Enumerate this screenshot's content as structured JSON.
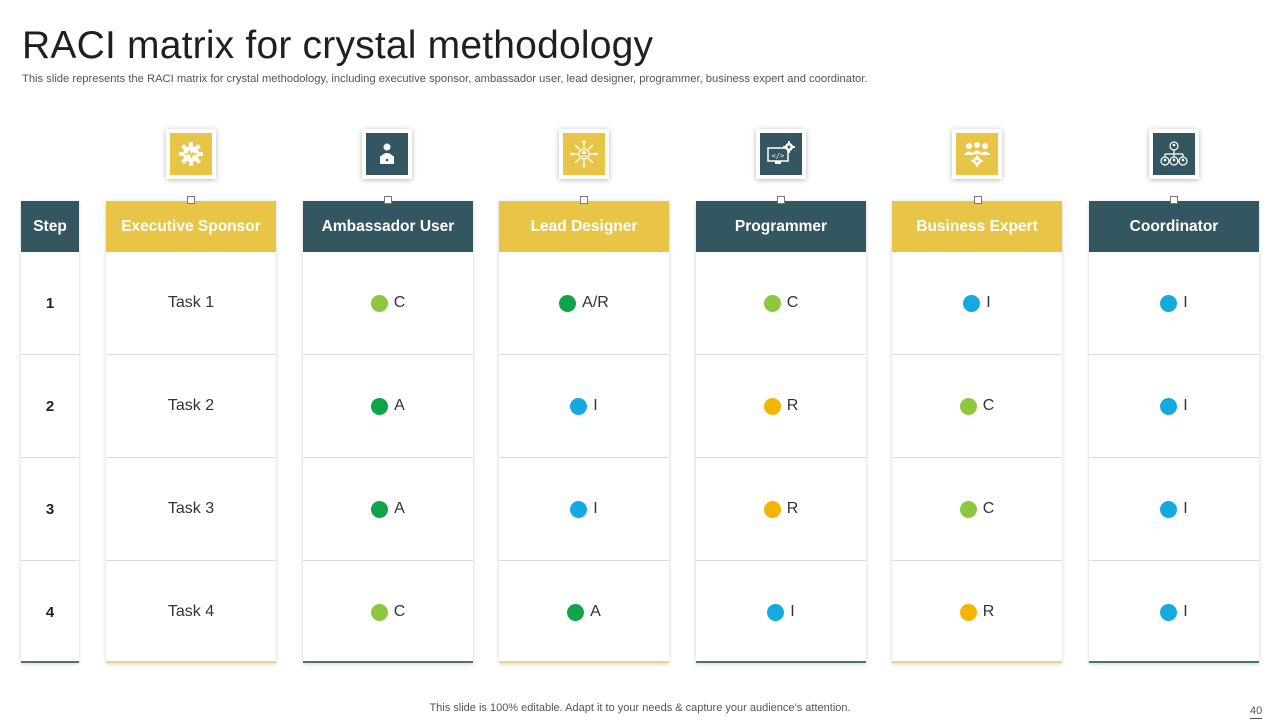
{
  "slide": {
    "title": "RACI matrix for crystal methodology",
    "subtitle": "This slide represents the RACI matrix for crystal methodology, including executive sponsor, ambassador user, lead designer, programmer, business expert and coordinator.",
    "footer": "This slide is 100% editable. Adapt it to your needs & capture your audience’s attention.",
    "page_number": "40"
  },
  "colors": {
    "yellow": "#e8c547",
    "teal": "#345660",
    "C": "#8dc63f",
    "A": "#0fa34a",
    "R": "#f4b400",
    "I": "#15a9e1"
  },
  "matrix": {
    "step_header": "Step",
    "steps": [
      "1",
      "2",
      "3",
      "4"
    ],
    "task_header": "Executive Sponsor",
    "tasks": [
      "Task 1",
      "Task 2",
      "Task 3",
      "Task 4"
    ],
    "roles": [
      {
        "name": "Ambassador User",
        "icon": "presenter-icon",
        "values": [
          "C",
          "A",
          "A",
          "C"
        ]
      },
      {
        "name": "Lead Designer",
        "icon": "network-person-icon",
        "values": [
          "A/R",
          "I",
          "I",
          "A"
        ]
      },
      {
        "name": "Programmer",
        "icon": "code-monitor-icon",
        "values": [
          "C",
          "R",
          "R",
          "I"
        ]
      },
      {
        "name": "Business Expert",
        "icon": "team-gear-icon",
        "values": [
          "I",
          "C",
          "C",
          "R"
        ]
      },
      {
        "name": "Coordinator",
        "icon": "org-chart-icon",
        "values": [
          "I",
          "I",
          "I",
          "I"
        ]
      }
    ],
    "executive_icon": "gear-heartbeat-icon"
  }
}
